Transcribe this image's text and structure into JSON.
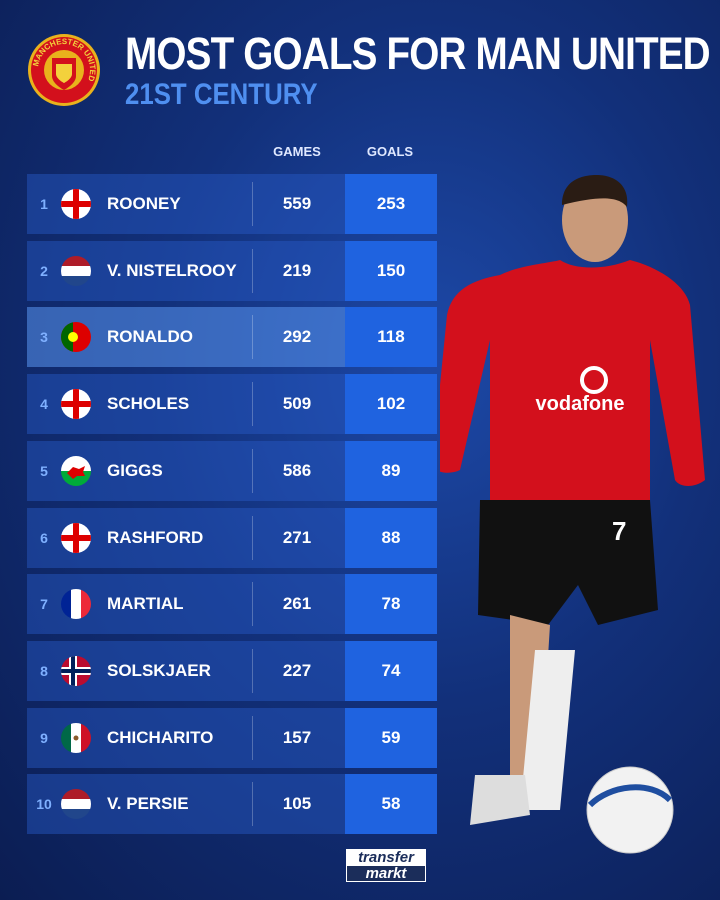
{
  "header": {
    "title": "MOST GOALS FOR MAN UNITED",
    "subtitle": "21ST CENTURY",
    "crest_text": "MANCHESTER UNITED"
  },
  "chart_data": {
    "type": "table",
    "columns": [
      "GAMES",
      "GOALS"
    ],
    "rows": [
      {
        "rank": "1",
        "flag": "england",
        "name": "ROONEY",
        "games": "559",
        "goals": "253"
      },
      {
        "rank": "2",
        "flag": "netherlands",
        "name": "V. NISTELROOY",
        "games": "219",
        "goals": "150"
      },
      {
        "rank": "3",
        "flag": "portugal",
        "name": "RONALDO",
        "games": "292",
        "goals": "118",
        "highlighted": true
      },
      {
        "rank": "4",
        "flag": "england",
        "name": "SCHOLES",
        "games": "509",
        "goals": "102"
      },
      {
        "rank": "5",
        "flag": "wales",
        "name": "GIGGS",
        "games": "586",
        "goals": "89"
      },
      {
        "rank": "6",
        "flag": "england",
        "name": "RASHFORD",
        "games": "271",
        "goals": "88"
      },
      {
        "rank": "7",
        "flag": "france",
        "name": "MARTIAL",
        "games": "261",
        "goals": "78"
      },
      {
        "rank": "8",
        "flag": "norway",
        "name": "SOLSKJAER",
        "games": "227",
        "goals": "74"
      },
      {
        "rank": "9",
        "flag": "mexico",
        "name": "CHICHARITO",
        "games": "157",
        "goals": "59"
      },
      {
        "rank": "10",
        "flag": "netherlands",
        "name": "V. PERSIE",
        "games": "105",
        "goals": "58"
      }
    ]
  },
  "player_shirt": {
    "sponsor": "vodafone",
    "number": "7"
  },
  "footer": {
    "logo_line1": "transfer",
    "logo_line2": "markt"
  },
  "colors": {
    "goals_cell": "#1f63e0",
    "subtitle": "#4f8ff0",
    "shirt": "#d3101c"
  }
}
